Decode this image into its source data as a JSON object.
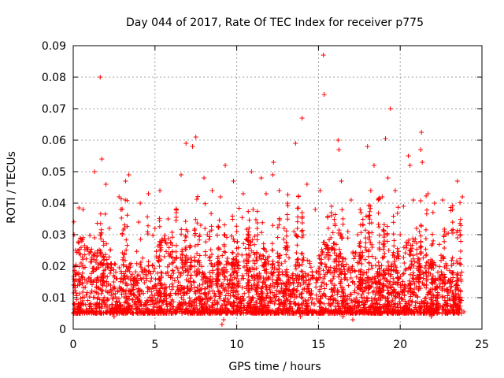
{
  "chart_data": {
    "type": "scatter",
    "title": "Day 044 of 2017, Rate Of TEC Index for receiver p775",
    "xlabel": "GPS time / hours",
    "ylabel": "ROTI / TECUs",
    "xlim": [
      0,
      25
    ],
    "ylim": [
      0,
      0.09
    ],
    "x_ticks": [
      0,
      5,
      10,
      15,
      20,
      25
    ],
    "x_tick_labels": [
      "0",
      "5",
      "10",
      "15",
      "20",
      "25"
    ],
    "y_ticks": [
      0,
      0.01,
      0.02,
      0.03,
      0.04,
      0.05,
      0.06,
      0.07,
      0.08,
      0.09
    ],
    "y_tick_labels": [
      "0",
      "0.01",
      "0.02",
      "0.03",
      "0.04",
      "0.05",
      "0.06",
      "0.07",
      "0.08",
      "0.09"
    ],
    "grid": true,
    "marker": "plus",
    "series": [
      {
        "name": "ROTI",
        "color": "#ff0000",
        "points": [
          [
            1.65,
            0.08
          ],
          [
            15.3,
            0.087
          ],
          [
            15.35,
            0.0745
          ],
          [
            19.4,
            0.07
          ],
          [
            14.0,
            0.067
          ],
          [
            21.3,
            0.0625
          ],
          [
            7.5,
            0.061
          ],
          [
            16.2,
            0.06
          ],
          [
            19.1,
            0.0605
          ],
          [
            13.6,
            0.059
          ],
          [
            6.9,
            0.059
          ],
          [
            7.3,
            0.058
          ],
          [
            18.0,
            0.058
          ],
          [
            16.25,
            0.057
          ],
          [
            21.25,
            0.057
          ],
          [
            1.75,
            0.054
          ],
          [
            1.3,
            0.05
          ],
          [
            3.4,
            0.049
          ],
          [
            3.2,
            0.047
          ],
          [
            9.3,
            0.052
          ],
          [
            8.0,
            0.048
          ],
          [
            10.9,
            0.05
          ],
          [
            12.2,
            0.049
          ],
          [
            12.25,
            0.053
          ],
          [
            14.3,
            0.046
          ],
          [
            16.4,
            0.047
          ],
          [
            18.4,
            0.052
          ],
          [
            19.25,
            0.048
          ],
          [
            20.5,
            0.055
          ],
          [
            20.6,
            0.052
          ],
          [
            21.35,
            0.053
          ],
          [
            23.5,
            0.047
          ],
          [
            2.0,
            0.046
          ],
          [
            15.1,
            0.044
          ],
          [
            5.3,
            0.044
          ],
          [
            4.6,
            0.043
          ],
          [
            6.6,
            0.049
          ],
          [
            9.8,
            0.047
          ],
          [
            11.5,
            0.048
          ],
          [
            0.35,
            0.0385
          ],
          [
            0.6,
            0.038
          ],
          [
            2.8,
            0.042
          ],
          [
            4.1,
            0.04
          ],
          [
            4.0,
            0.034
          ],
          [
            5.8,
            0.035
          ],
          [
            6.3,
            0.038
          ],
          [
            8.5,
            0.044
          ],
          [
            9.0,
            0.042
          ],
          [
            10.4,
            0.043
          ],
          [
            11.0,
            0.038
          ],
          [
            11.8,
            0.043
          ],
          [
            12.6,
            0.044
          ],
          [
            13.1,
            0.04
          ],
          [
            14.8,
            0.038
          ],
          [
            15.8,
            0.039
          ],
          [
            17.0,
            0.041
          ],
          [
            17.6,
            0.037
          ],
          [
            18.2,
            0.044
          ],
          [
            18.9,
            0.042
          ],
          [
            19.7,
            0.044
          ],
          [
            20.2,
            0.039
          ],
          [
            20.8,
            0.041
          ],
          [
            21.7,
            0.043
          ],
          [
            22.1,
            0.04
          ],
          [
            22.6,
            0.041
          ],
          [
            23.2,
            0.038
          ],
          [
            23.8,
            0.042
          ],
          [
            2.2,
            0.032
          ],
          [
            3.0,
            0.03
          ],
          [
            5.0,
            0.032
          ],
          [
            7.0,
            0.031
          ],
          [
            7.8,
            0.033
          ],
          [
            8.2,
            0.03
          ],
          [
            10.0,
            0.031
          ],
          [
            10.7,
            0.03
          ],
          [
            12.9,
            0.032
          ],
          [
            13.5,
            0.031
          ],
          [
            15.6,
            0.032
          ],
          [
            16.8,
            0.031
          ],
          [
            17.4,
            0.03
          ],
          [
            19.0,
            0.031
          ],
          [
            20.0,
            0.03
          ],
          [
            21.0,
            0.032
          ],
          [
            22.8,
            0.03
          ],
          [
            23.5,
            0.029
          ],
          [
            0.05,
            0.008
          ],
          [
            0.05,
            0.03
          ],
          [
            0.5,
            0.0055
          ],
          [
            2.5,
            0.004
          ],
          [
            9.1,
            0.0015
          ],
          [
            9.2,
            0.003
          ],
          [
            11.2,
            0.005
          ],
          [
            13.9,
            0.004
          ],
          [
            16.5,
            0.004
          ],
          [
            17.1,
            0.003
          ],
          [
            18.3,
            0.005
          ],
          [
            21.9,
            0.004
          ],
          [
            23.9,
            0.0055
          ],
          [
            6.0,
            0.005
          ],
          [
            4.5,
            0.006
          ]
        ]
      }
    ],
    "density_note": "dense cluster of ROTI samples over the full day, mostly 0.005 to 0.030 TECU/min"
  }
}
